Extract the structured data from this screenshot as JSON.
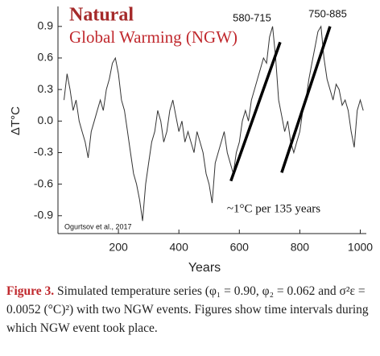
{
  "chart_data": {
    "type": "line",
    "title": "Natural",
    "subtitle": "Global Warming (NGW)",
    "x_label": "Years",
    "y_label": "ΔT°C",
    "annotations": [
      "580-715",
      "750-885",
      "~1°C per 135 years",
      "Ogurtsov et al., 2017"
    ],
    "caption_label": "Figure 3.",
    "caption": "Simulated temperature series (φ₁ = 0.90, φ₂ = 0.062 and σ²ε = 0.0052 (°C)²) with two NGW events. Figures show time intervals during which NGW event took place.",
    "color": "#333333",
    "x": [
      20,
      30,
      40,
      50,
      60,
      70,
      80,
      90,
      100,
      110,
      120,
      130,
      140,
      150,
      160,
      170,
      180,
      190,
      200,
      210,
      220,
      230,
      240,
      250,
      260,
      270,
      280,
      290,
      300,
      310,
      320,
      330,
      340,
      350,
      360,
      370,
      380,
      390,
      400,
      410,
      420,
      430,
      440,
      450,
      460,
      470,
      480,
      490,
      500,
      510,
      520,
      530,
      540,
      550,
      560,
      570,
      580,
      590,
      600,
      610,
      620,
      630,
      640,
      650,
      660,
      670,
      680,
      690,
      700,
      710,
      720,
      730,
      740,
      750,
      760,
      770,
      780,
      790,
      800,
      810,
      820,
      830,
      840,
      850,
      860,
      870,
      880,
      890,
      900,
      910,
      920,
      930,
      940,
      950,
      960,
      970,
      980,
      990,
      1000,
      1010
    ],
    "values": [
      0.2,
      0.45,
      0.3,
      0.1,
      0.2,
      0.0,
      -0.1,
      -0.2,
      -0.35,
      -0.1,
      0.0,
      0.1,
      0.2,
      0.1,
      0.3,
      0.4,
      0.55,
      0.6,
      0.45,
      0.2,
      0.1,
      -0.1,
      -0.3,
      -0.5,
      -0.6,
      -0.75,
      -0.95,
      -0.6,
      -0.4,
      -0.2,
      -0.1,
      0.1,
      0.0,
      -0.2,
      -0.1,
      0.1,
      0.2,
      0.05,
      -0.1,
      0.0,
      -0.2,
      -0.1,
      -0.2,
      -0.3,
      -0.1,
      -0.2,
      -0.3,
      -0.5,
      -0.6,
      -0.78,
      -0.4,
      -0.3,
      -0.2,
      -0.1,
      -0.3,
      -0.4,
      -0.5,
      -0.3,
      -0.2,
      0.0,
      0.1,
      0.0,
      0.2,
      0.3,
      0.4,
      0.5,
      0.6,
      0.55,
      0.8,
      0.9,
      0.6,
      0.2,
      0.05,
      -0.1,
      0.0,
      -0.2,
      -0.3,
      -0.2,
      -0.1,
      0.1,
      0.2,
      0.4,
      0.55,
      0.7,
      0.85,
      0.9,
      0.6,
      0.4,
      0.3,
      0.2,
      0.35,
      0.3,
      0.15,
      0.2,
      0.1,
      -0.1,
      -0.25,
      0.1,
      0.2,
      0.1
    ],
    "trend_lines": [
      {
        "x": [
          572,
          735
        ],
        "y": [
          -0.57,
          0.75
        ]
      },
      {
        "x": [
          740,
          900
        ],
        "y": [
          -0.49,
          0.9
        ]
      }
    ],
    "xlim": [
      0,
      1020
    ],
    "ylim": [
      -1.07,
      1.09
    ],
    "xticks": [
      200,
      400,
      600,
      800,
      1000
    ],
    "yticks": [
      -0.9,
      -0.6,
      -0.3,
      {
        "value": 0,
        "label": "0.0"
      },
      0.3,
      0.6,
      0.9
    ]
  }
}
